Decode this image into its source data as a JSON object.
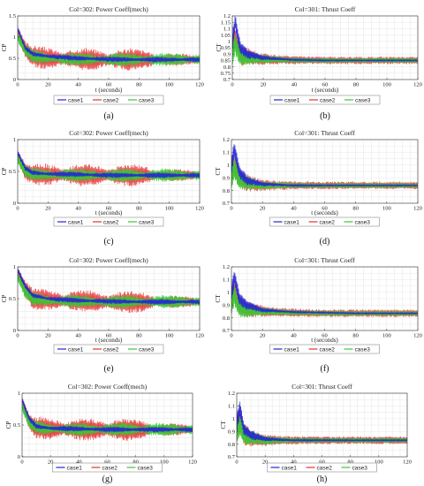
{
  "figure": {
    "legend_labels": [
      "case1",
      "case2",
      "case3"
    ],
    "series_colors": {
      "case1": "#2323d6",
      "case2": "#e53232",
      "case3": "#33cc33"
    },
    "case_row_order": [
      "case2",
      "case3",
      "case1"
    ]
  },
  "chart_data": [
    {
      "panel": "(a)",
      "type": "line",
      "title": "Col=302: Power Coeff(mech)",
      "xlabel": "t (seconds)",
      "ylabel": "CP",
      "xlim": [
        0,
        120
      ],
      "ylim": [
        0,
        1.5
      ],
      "xticks": [
        0,
        20,
        40,
        60,
        80,
        100,
        120
      ],
      "yticks": [
        0,
        0.5,
        1,
        1.5
      ],
      "grid": true,
      "legend_position": "bottom",
      "series": [
        {
          "name": "case1",
          "color": "#2323d6",
          "x": [
            0,
            5,
            10,
            20,
            40,
            60,
            80,
            100,
            120
          ],
          "y": [
            1.2,
            0.75,
            0.6,
            0.55,
            0.5,
            0.48,
            0.47,
            0.47,
            0.47
          ]
        },
        {
          "name": "case2",
          "color": "#e53232",
          "x": [
            0,
            5,
            10,
            20,
            40,
            60,
            80,
            100,
            120
          ],
          "y": [
            1.1,
            0.7,
            0.55,
            0.5,
            0.48,
            0.47,
            0.47,
            0.47,
            0.47
          ]
        },
        {
          "name": "case3",
          "color": "#33cc33",
          "x": [
            0,
            5,
            10,
            20,
            40,
            60,
            80,
            100,
            120
          ],
          "y": [
            1.0,
            0.7,
            0.55,
            0.5,
            0.48,
            0.47,
            0.47,
            0.47,
            0.47
          ]
        }
      ]
    },
    {
      "panel": "(b)",
      "type": "line",
      "title": "Col=301: Thrust Coeff",
      "xlabel": "t (seconds)",
      "ylabel": "CT",
      "xlim": [
        0,
        120
      ],
      "ylim": [
        0.7,
        1.2
      ],
      "xticks": [
        0,
        20,
        40,
        60,
        80,
        100,
        120
      ],
      "yticks": [
        0.7,
        0.75,
        0.8,
        0.85,
        0.9,
        0.95,
        1,
        1.05,
        1.1,
        1.15,
        1.2
      ],
      "grid": true,
      "legend_position": "bottom",
      "series": [
        {
          "name": "case1",
          "color": "#2323d6",
          "x": [
            0,
            2,
            5,
            10,
            20,
            40,
            60,
            80,
            100,
            120
          ],
          "y": [
            1.0,
            1.15,
            0.95,
            0.9,
            0.87,
            0.855,
            0.85,
            0.85,
            0.85,
            0.85
          ]
        },
        {
          "name": "case2",
          "color": "#e53232",
          "x": [
            0,
            2,
            5,
            10,
            20,
            40,
            60,
            80,
            100,
            120
          ],
          "y": [
            0.95,
            1.02,
            0.9,
            0.88,
            0.86,
            0.852,
            0.85,
            0.85,
            0.85,
            0.85
          ]
        },
        {
          "name": "case3",
          "color": "#33cc33",
          "x": [
            0,
            2,
            5,
            10,
            20,
            40,
            60,
            80,
            100,
            120
          ],
          "y": [
            0.92,
            0.98,
            0.88,
            0.87,
            0.86,
            0.852,
            0.85,
            0.85,
            0.85,
            0.85
          ]
        }
      ]
    },
    {
      "panel": "(c)",
      "type": "line",
      "title": "Col=302: Power Coeff(mech)",
      "xlabel": "t (seconds)",
      "ylabel": "CP",
      "xlim": [
        0,
        120
      ],
      "ylim": [
        0,
        1
      ],
      "xticks": [
        0,
        20,
        40,
        60,
        80,
        100,
        120
      ],
      "yticks": [
        0,
        0.5,
        1
      ],
      "grid": true,
      "legend_position": "bottom",
      "series": [
        {
          "name": "case1",
          "color": "#2323d6",
          "x": [
            0,
            5,
            10,
            20,
            40,
            60,
            80,
            100,
            120
          ],
          "y": [
            0.8,
            0.55,
            0.48,
            0.46,
            0.45,
            0.44,
            0.44,
            0.44,
            0.44
          ]
        },
        {
          "name": "case2",
          "color": "#e53232",
          "x": [
            0,
            5,
            10,
            20,
            40,
            60,
            80,
            100,
            120
          ],
          "y": [
            0.75,
            0.5,
            0.46,
            0.45,
            0.44,
            0.44,
            0.44,
            0.44,
            0.44
          ]
        },
        {
          "name": "case3",
          "color": "#33cc33",
          "x": [
            0,
            5,
            10,
            20,
            40,
            60,
            80,
            100,
            120
          ],
          "y": [
            0.7,
            0.5,
            0.46,
            0.45,
            0.44,
            0.44,
            0.44,
            0.44,
            0.44
          ]
        }
      ]
    },
    {
      "panel": "(d)",
      "type": "line",
      "title": "Col=301: Thrust Coeff",
      "xlabel": "t (seconds)",
      "ylabel": "CT",
      "xlim": [
        0,
        120
      ],
      "ylim": [
        0.7,
        1.2
      ],
      "xticks": [
        0,
        20,
        40,
        60,
        80,
        100,
        120
      ],
      "yticks": [
        0.7,
        0.8,
        0.9,
        1,
        1.1,
        1.2
      ],
      "grid": true,
      "legend_position": "bottom",
      "series": [
        {
          "name": "case1",
          "color": "#2323d6",
          "x": [
            0,
            2,
            5,
            10,
            20,
            40,
            60,
            80,
            100,
            120
          ],
          "y": [
            1.0,
            1.12,
            0.95,
            0.88,
            0.85,
            0.84,
            0.84,
            0.84,
            0.84,
            0.84
          ]
        },
        {
          "name": "case2",
          "color": "#e53232",
          "x": [
            0,
            2,
            5,
            10,
            20,
            40,
            60,
            80,
            100,
            120
          ],
          "y": [
            0.95,
            1.0,
            0.9,
            0.86,
            0.84,
            0.84,
            0.84,
            0.84,
            0.84,
            0.84
          ]
        },
        {
          "name": "case3",
          "color": "#33cc33",
          "x": [
            0,
            2,
            5,
            10,
            20,
            40,
            60,
            80,
            100,
            120
          ],
          "y": [
            0.92,
            0.98,
            0.88,
            0.86,
            0.84,
            0.84,
            0.84,
            0.84,
            0.84,
            0.84
          ]
        }
      ]
    },
    {
      "panel": "(e)",
      "type": "line",
      "title": "Col=302: Power Coeff(mech)",
      "xlabel": "t (seconds)",
      "ylabel": "CP",
      "xlim": [
        0,
        120
      ],
      "ylim": [
        0,
        1
      ],
      "xticks": [
        0,
        20,
        40,
        60,
        80,
        100,
        120
      ],
      "yticks": [
        0,
        0.5,
        1
      ],
      "grid": true,
      "legend_position": "bottom",
      "series": [
        {
          "name": "case1",
          "color": "#2323d6",
          "x": [
            0,
            5,
            10,
            20,
            40,
            60,
            80,
            100,
            120
          ],
          "y": [
            0.95,
            0.7,
            0.55,
            0.5,
            0.47,
            0.46,
            0.45,
            0.45,
            0.45
          ]
        },
        {
          "name": "case2",
          "color": "#e53232",
          "x": [
            0,
            5,
            10,
            20,
            40,
            60,
            80,
            100,
            120
          ],
          "y": [
            0.9,
            0.65,
            0.5,
            0.48,
            0.46,
            0.45,
            0.45,
            0.45,
            0.45
          ]
        },
        {
          "name": "case3",
          "color": "#33cc33",
          "x": [
            0,
            5,
            10,
            20,
            40,
            60,
            80,
            100,
            120
          ],
          "y": [
            0.85,
            0.6,
            0.5,
            0.47,
            0.46,
            0.45,
            0.45,
            0.45,
            0.45
          ]
        }
      ]
    },
    {
      "panel": "(f)",
      "type": "line",
      "title": "Col=301: Thrust Coeff",
      "xlabel": "t (seconds)",
      "ylabel": "CT",
      "xlim": [
        0,
        120
      ],
      "ylim": [
        0.7,
        1.2
      ],
      "xticks": [
        0,
        20,
        40,
        60,
        80,
        100,
        120
      ],
      "yticks": [
        0.7,
        0.8,
        0.9,
        1,
        1.1,
        1.2
      ],
      "grid": true,
      "legend_position": "bottom",
      "series": [
        {
          "name": "case1",
          "color": "#2323d6",
          "x": [
            0,
            2,
            5,
            10,
            20,
            40,
            60,
            80,
            100,
            120
          ],
          "y": [
            1.0,
            1.12,
            0.95,
            0.9,
            0.86,
            0.845,
            0.84,
            0.835,
            0.835,
            0.835
          ]
        },
        {
          "name": "case2",
          "color": "#e53232",
          "x": [
            0,
            2,
            5,
            10,
            20,
            40,
            60,
            80,
            100,
            120
          ],
          "y": [
            0.95,
            1.0,
            0.9,
            0.87,
            0.85,
            0.84,
            0.835,
            0.835,
            0.835,
            0.835
          ]
        },
        {
          "name": "case3",
          "color": "#33cc33",
          "x": [
            0,
            2,
            5,
            10,
            20,
            40,
            60,
            80,
            100,
            120
          ],
          "y": [
            0.92,
            0.97,
            0.88,
            0.86,
            0.85,
            0.84,
            0.835,
            0.835,
            0.835,
            0.835
          ]
        }
      ]
    },
    {
      "panel": "(g)",
      "type": "line",
      "title": "Col=302: Power Coeff(mech)",
      "xlabel": "",
      "ylabel": "CP",
      "xlim": [
        0,
        120
      ],
      "ylim": [
        0,
        1
      ],
      "xticks": [
        0,
        20,
        40,
        60,
        80,
        100,
        120
      ],
      "yticks": [
        0,
        0.5,
        1
      ],
      "grid": true,
      "legend_position": "bottom",
      "series": [
        {
          "name": "case1",
          "color": "#2323d6",
          "x": [
            0,
            5,
            10,
            20,
            40,
            60,
            80,
            100,
            120
          ],
          "y": [
            0.9,
            0.6,
            0.48,
            0.45,
            0.44,
            0.43,
            0.43,
            0.43,
            0.43
          ]
        },
        {
          "name": "case2",
          "color": "#e53232",
          "x": [
            0,
            5,
            10,
            20,
            40,
            60,
            80,
            100,
            120
          ],
          "y": [
            0.85,
            0.55,
            0.46,
            0.44,
            0.43,
            0.43,
            0.43,
            0.43,
            0.43
          ]
        },
        {
          "name": "case3",
          "color": "#33cc33",
          "x": [
            0,
            5,
            10,
            20,
            40,
            60,
            80,
            100,
            120
          ],
          "y": [
            0.8,
            0.55,
            0.46,
            0.44,
            0.43,
            0.43,
            0.43,
            0.43,
            0.43
          ]
        }
      ]
    },
    {
      "panel": "(h)",
      "type": "line",
      "title": "Col=301: Thrust Coeff",
      "xlabel": "",
      "ylabel": "CT",
      "xlim": [
        0,
        120
      ],
      "ylim": [
        0.7,
        1.2
      ],
      "xticks": [
        0,
        20,
        40,
        60,
        80,
        100,
        120
      ],
      "yticks": [
        0.7,
        0.8,
        0.9,
        1,
        1.1,
        1.2
      ],
      "grid": true,
      "legend_position": "bottom",
      "series": [
        {
          "name": "case1",
          "color": "#2323d6",
          "x": [
            0,
            2,
            5,
            10,
            20,
            40,
            60,
            80,
            100,
            120
          ],
          "y": [
            0.95,
            1.08,
            0.92,
            0.87,
            0.84,
            0.83,
            0.83,
            0.83,
            0.83,
            0.83
          ]
        },
        {
          "name": "case2",
          "color": "#e53232",
          "x": [
            0,
            2,
            5,
            10,
            20,
            40,
            60,
            80,
            100,
            120
          ],
          "y": [
            0.92,
            0.98,
            0.88,
            0.85,
            0.83,
            0.83,
            0.83,
            0.83,
            0.83,
            0.83
          ]
        },
        {
          "name": "case3",
          "color": "#33cc33",
          "x": [
            0,
            2,
            5,
            10,
            20,
            40,
            60,
            80,
            100,
            120
          ],
          "y": [
            0.9,
            0.95,
            0.87,
            0.85,
            0.83,
            0.83,
            0.83,
            0.83,
            0.83,
            0.83
          ]
        }
      ]
    }
  ]
}
